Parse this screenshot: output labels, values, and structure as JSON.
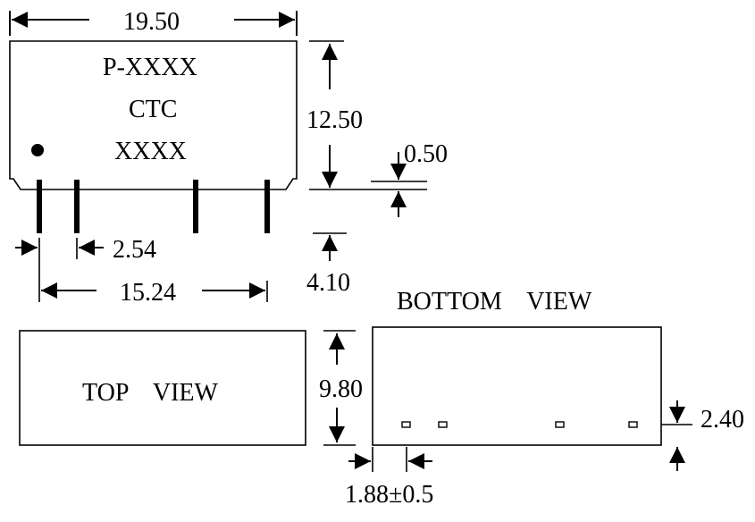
{
  "dimensions": {
    "overall_length": "19.50",
    "body_height": "12.50",
    "standoff": "0.50",
    "pin_pitch": "2.54",
    "pin_length": "4.10",
    "pin_span": "15.24",
    "body_width": "9.80",
    "pin_offset": "2.40",
    "edge_to_pin": "1.88±0.5"
  },
  "marking": {
    "line1": "P-XXXX",
    "line2": "CTC",
    "line3": "XXXX"
  },
  "views": {
    "top": "TOP    VIEW",
    "bottom": "BOTTOM    VIEW"
  }
}
